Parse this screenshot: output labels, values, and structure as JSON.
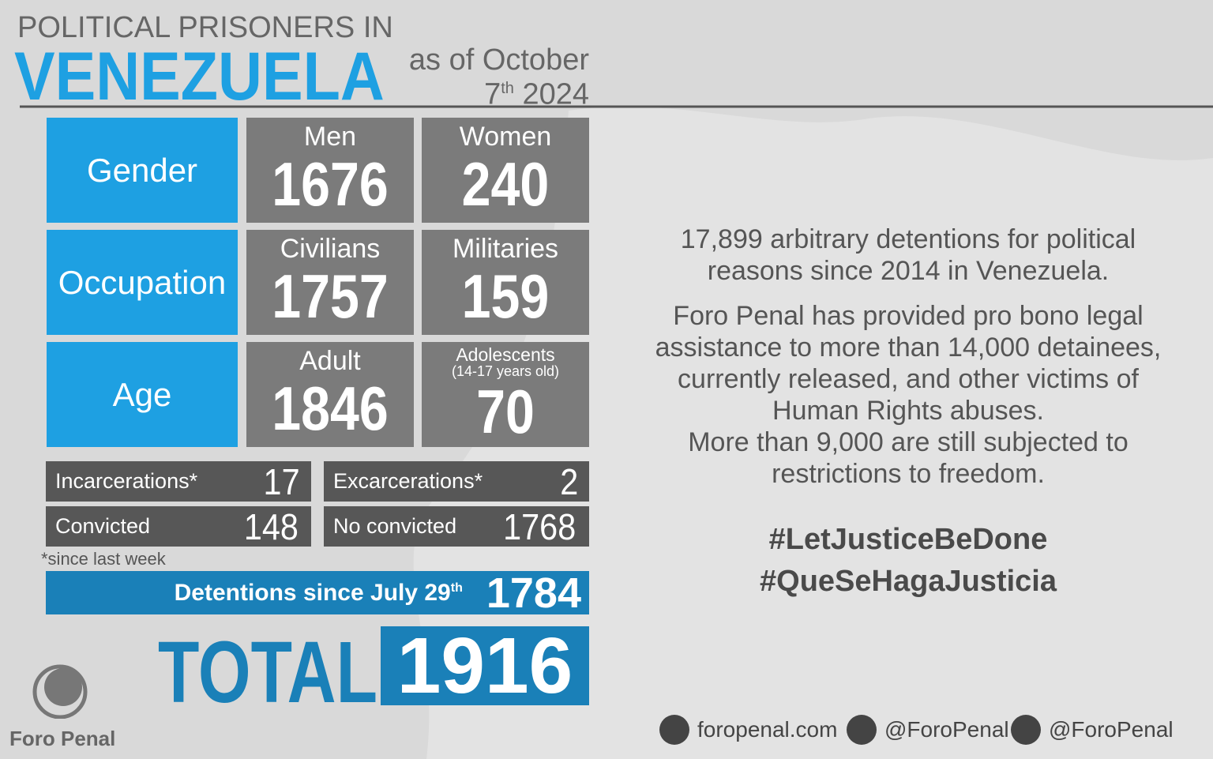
{
  "header": {
    "kicker": "POLITICAL PRISONERS IN",
    "title": "VENEZUELA",
    "date_prefix": "as of October",
    "date_day": "7",
    "date_suffix": "th",
    "date_year": "2024"
  },
  "grid": {
    "rows": [
      {
        "label": "Gender",
        "cells": [
          {
            "label": "Men",
            "value": 1676
          },
          {
            "label": "Women",
            "value": 240
          }
        ]
      },
      {
        "label": "Occupation",
        "cells": [
          {
            "label": "Civilians",
            "value": 1757
          },
          {
            "label": "Militaries",
            "value": 159
          }
        ]
      },
      {
        "label": "Age",
        "cells": [
          {
            "label": "Adult",
            "value": 1846
          },
          {
            "label": "Adolescents",
            "sublabel": "(14-17 years old)",
            "value": 70
          }
        ]
      }
    ]
  },
  "summary": {
    "rows": [
      [
        {
          "label": "Incarcerations*",
          "value": 17
        },
        {
          "label": "Excarcerations*",
          "value": 2
        }
      ],
      [
        {
          "label": "Convicted",
          "value": 148
        },
        {
          "label": "No convicted",
          "value": 1768
        }
      ]
    ],
    "footnote": "*since last week"
  },
  "detentions": {
    "label": "Detentions since July 29",
    "suffix": "th",
    "value": 1784
  },
  "total": {
    "label": "TOTAL",
    "value": 1916
  },
  "info": {
    "paragraphs": [
      [
        "17,899 arbitrary detentions for political",
        "reasons since 2014 in Venezuela."
      ],
      [
        "Foro Penal has provided pro bono legal",
        "assistance to more than 14,000 detainees,",
        "currently released, and other victims of",
        "Human Rights abuses.",
        "More than 9,000 are still subjected to",
        "restrictions to freedom."
      ]
    ],
    "hashtags": [
      "#LetJusticeBeDone",
      "#QueSeHagaJusticia"
    ]
  },
  "footer": {
    "website": "foropenal.com",
    "twitter": "@ForoPenal",
    "instagram": "@ForoPenal",
    "logo": "Foro Penal"
  }
}
